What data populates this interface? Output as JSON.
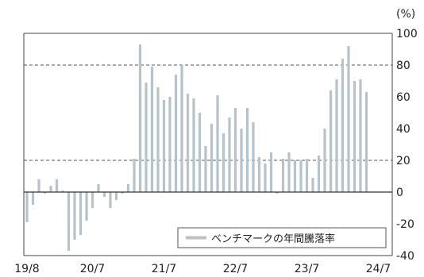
{
  "chart_data": {
    "type": "bar",
    "unit": "(%)",
    "ylim": [
      -40,
      100
    ],
    "y_ticks": [
      "100",
      "80",
      "60",
      "40",
      "20",
      "0",
      "-20",
      "-40"
    ],
    "y_tick_values": [
      100,
      80,
      60,
      40,
      20,
      0,
      -20,
      -40
    ],
    "x_tick_labels": [
      "19/8",
      "20/7",
      "21/7",
      "22/7",
      "23/7",
      "24/7"
    ],
    "x_tick_months": [
      "2019-08",
      "2020-07",
      "2021-07",
      "2022-07",
      "2023-07",
      "2024-07"
    ],
    "gridlines": "dashed horizontal at 20 and 80",
    "legend_position": "bottom-right",
    "series": [
      {
        "name": "ベンチマークの年間騰落率",
        "color": "#b6c3cc",
        "x": [
          "2019-08",
          "2019-09",
          "2019-10",
          "2019-11",
          "2019-12",
          "2020-01",
          "2020-02",
          "2020-03",
          "2020-04",
          "2020-05",
          "2020-06",
          "2020-07",
          "2020-08",
          "2020-09",
          "2020-10",
          "2020-11",
          "2020-12",
          "2021-01",
          "2021-02",
          "2021-03",
          "2021-04",
          "2021-05",
          "2021-06",
          "2021-07",
          "2021-08",
          "2021-09",
          "2021-10",
          "2021-11",
          "2021-12",
          "2022-01",
          "2022-02",
          "2022-03",
          "2022-04",
          "2022-05",
          "2022-06",
          "2022-07",
          "2022-08",
          "2022-09",
          "2022-10",
          "2022-11",
          "2022-12",
          "2023-01",
          "2023-02",
          "2023-03",
          "2023-04",
          "2023-05",
          "2023-06",
          "2023-07",
          "2023-08",
          "2023-09",
          "2023-10",
          "2023-11",
          "2023-12",
          "2024-01",
          "2024-02",
          "2024-03",
          "2024-04",
          "2024-05",
          "2024-06"
        ],
        "values": [
          -19,
          -8,
          8,
          -1,
          4,
          8,
          1,
          -37,
          -30,
          -27,
          -18,
          -10,
          5,
          -3,
          -10,
          -5,
          -1,
          5,
          21,
          93,
          69,
          79,
          66,
          58,
          60,
          74,
          80,
          62,
          59,
          50,
          29,
          43,
          61,
          37,
          47,
          53,
          40,
          53,
          44,
          22,
          18,
          25,
          -1,
          21,
          25,
          20,
          20,
          21,
          9,
          23,
          40,
          64,
          71,
          84,
          92,
          70,
          71,
          63,
          0
        ]
      }
    ]
  }
}
